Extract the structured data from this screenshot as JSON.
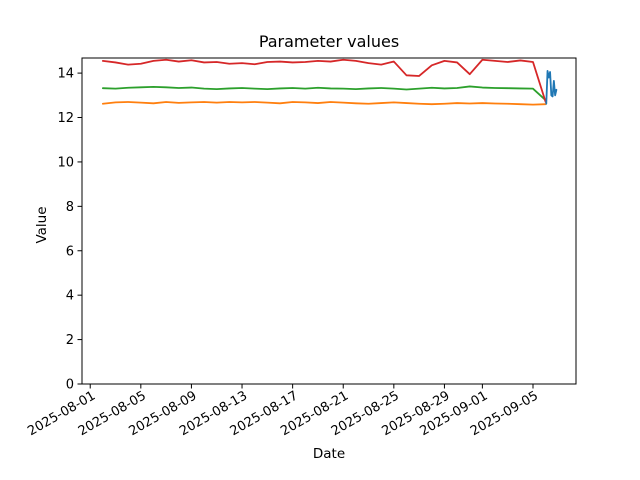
{
  "figure": {
    "background": "#ffffff"
  },
  "chart_data": {
    "type": "line",
    "title": "Parameter values",
    "xlabel": "Date",
    "ylabel": "Value",
    "grid": false,
    "legend": false,
    "ylim": [
      0,
      14.68
    ],
    "y_ticks": [
      0,
      2,
      4,
      6,
      8,
      10,
      12,
      14
    ],
    "x_axis": {
      "unit": "days since 2025-08-01",
      "xlim_days": [
        -0.65,
        38.4
      ],
      "tick_days": [
        0,
        4,
        8,
        12,
        16,
        20,
        24,
        28,
        31,
        35
      ],
      "tick_labels": [
        "2025-08-01",
        "2025-08-05",
        "2025-08-09",
        "2025-08-13",
        "2025-08-17",
        "2025-08-21",
        "2025-08-25",
        "2025-08-29",
        "2025-09-01",
        "2025-09-05"
      ]
    },
    "series": [
      {
        "name": "orange",
        "color": "#ff7f0e",
        "start_date": "2025-08-02",
        "x_days": [
          1,
          2,
          3,
          4,
          5,
          6,
          7,
          8,
          9,
          10,
          11,
          12,
          13,
          14,
          15,
          16,
          17,
          18,
          19,
          20,
          21,
          22,
          23,
          24,
          25,
          26,
          27,
          28,
          29,
          30,
          31,
          32,
          33,
          34,
          35,
          36
        ],
        "values": [
          12.62,
          12.68,
          12.7,
          12.67,
          12.64,
          12.7,
          12.66,
          12.68,
          12.7,
          12.67,
          12.7,
          12.68,
          12.7,
          12.67,
          12.64,
          12.7,
          12.68,
          12.65,
          12.7,
          12.67,
          12.64,
          12.62,
          12.65,
          12.68,
          12.65,
          12.62,
          12.6,
          12.62,
          12.65,
          12.63,
          12.65,
          12.63,
          12.62,
          12.6,
          12.58,
          12.6
        ]
      },
      {
        "name": "green",
        "color": "#2ca02c",
        "start_date": "2025-08-02",
        "x_days": [
          1,
          2,
          3,
          4,
          5,
          6,
          7,
          8,
          9,
          10,
          11,
          12,
          13,
          14,
          15,
          16,
          17,
          18,
          19,
          20,
          21,
          22,
          23,
          24,
          25,
          26,
          27,
          28,
          29,
          30,
          31,
          32,
          33,
          34,
          35,
          36
        ],
        "values": [
          13.32,
          13.3,
          13.34,
          13.36,
          13.38,
          13.36,
          13.33,
          13.35,
          13.3,
          13.28,
          13.31,
          13.33,
          13.3,
          13.28,
          13.31,
          13.33,
          13.3,
          13.34,
          13.31,
          13.3,
          13.28,
          13.31,
          13.33,
          13.3,
          13.26,
          13.3,
          13.34,
          13.31,
          13.33,
          13.4,
          13.35,
          13.33,
          13.32,
          13.31,
          13.3,
          12.78
        ]
      },
      {
        "name": "red",
        "color": "#d62728",
        "start_date": "2025-08-02",
        "x_days": [
          1,
          2,
          3,
          4,
          5,
          6,
          7,
          8,
          9,
          10,
          11,
          12,
          13,
          14,
          15,
          16,
          17,
          18,
          19,
          20,
          21,
          22,
          23,
          24,
          25,
          26,
          27,
          28,
          29,
          30,
          31,
          32,
          33,
          34,
          35,
          36
        ],
        "values": [
          14.55,
          14.48,
          14.38,
          14.42,
          14.55,
          14.6,
          14.52,
          14.58,
          14.48,
          14.5,
          14.42,
          14.45,
          14.4,
          14.5,
          14.52,
          14.48,
          14.5,
          14.55,
          14.52,
          14.6,
          14.55,
          14.45,
          14.38,
          14.52,
          13.9,
          13.87,
          14.35,
          14.55,
          14.48,
          13.95,
          14.6,
          14.55,
          14.5,
          14.57,
          14.5,
          12.7
        ]
      },
      {
        "name": "blue",
        "color": "#1f77b4",
        "start_date": "2025-09-06",
        "x_days": [
          36.05,
          36.15,
          36.25,
          36.35,
          36.45,
          36.55,
          36.65,
          36.75,
          36.85
        ],
        "values": [
          12.62,
          14.1,
          13.8,
          14.05,
          13.0,
          12.95,
          13.65,
          13.0,
          13.25
        ]
      }
    ]
  }
}
